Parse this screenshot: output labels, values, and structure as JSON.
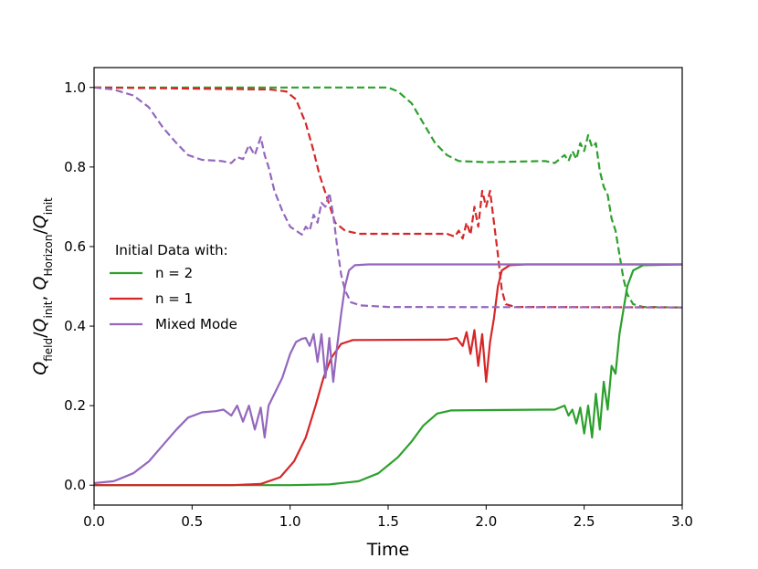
{
  "chart_data": {
    "type": "line",
    "xlabel": "Time",
    "ylabel_parts": {
      "q1": "Q",
      "s1": "field",
      "slash1": "/",
      "q2": "Q",
      "s2": "init",
      "comma": ",",
      "q3": "Q",
      "s3": "Horizon",
      "slash2": "/",
      "q4": "Q",
      "s4": "init"
    },
    "xlim": [
      0.0,
      3.0
    ],
    "ylim": [
      -0.05,
      1.05
    ],
    "xticks": [
      "0.0",
      "0.5",
      "1.0",
      "1.5",
      "2.0",
      "2.5",
      "3.0"
    ],
    "yticks": [
      "0.0",
      "0.2",
      "0.4",
      "0.6",
      "0.8",
      "1.0"
    ],
    "legend": {
      "title": "Initial Data with:",
      "placement": "center-left",
      "entries": [
        {
          "label": "n = 2",
          "color": "#2ca02c"
        },
        {
          "label": "n = 1",
          "color": "#d62728"
        },
        {
          "label": "Mixed Mode",
          "color": "#9467bd"
        }
      ]
    },
    "series": [
      {
        "name": "n = 2 field (solid)",
        "color": "#2ca02c",
        "style": "solid",
        "points": [
          [
            0,
            0
          ],
          [
            1.0,
            0.0
          ],
          [
            1.2,
            0.002
          ],
          [
            1.35,
            0.01
          ],
          [
            1.45,
            0.03
          ],
          [
            1.55,
            0.07
          ],
          [
            1.62,
            0.11
          ],
          [
            1.68,
            0.15
          ],
          [
            1.75,
            0.18
          ],
          [
            1.82,
            0.188
          ],
          [
            2.3,
            0.19
          ],
          [
            2.35,
            0.19
          ],
          [
            2.4,
            0.2
          ],
          [
            2.42,
            0.175
          ],
          [
            2.44,
            0.19
          ],
          [
            2.46,
            0.155
          ],
          [
            2.48,
            0.195
          ],
          [
            2.5,
            0.13
          ],
          [
            2.52,
            0.2
          ],
          [
            2.54,
            0.12
          ],
          [
            2.56,
            0.23
          ],
          [
            2.58,
            0.14
          ],
          [
            2.6,
            0.26
          ],
          [
            2.62,
            0.19
          ],
          [
            2.64,
            0.3
          ],
          [
            2.66,
            0.28
          ],
          [
            2.68,
            0.38
          ],
          [
            2.7,
            0.44
          ],
          [
            2.72,
            0.5
          ],
          [
            2.75,
            0.54
          ],
          [
            2.8,
            0.553
          ],
          [
            3.0,
            0.555
          ]
        ]
      },
      {
        "name": "n = 2 horizon (dashed)",
        "color": "#2ca02c",
        "style": "dashed",
        "points": [
          [
            0,
            1.0
          ],
          [
            1.5,
            1.0
          ],
          [
            1.55,
            0.99
          ],
          [
            1.62,
            0.96
          ],
          [
            1.68,
            0.91
          ],
          [
            1.74,
            0.86
          ],
          [
            1.8,
            0.83
          ],
          [
            1.86,
            0.815
          ],
          [
            2.0,
            0.812
          ],
          [
            2.3,
            0.815
          ],
          [
            2.35,
            0.81
          ],
          [
            2.4,
            0.83
          ],
          [
            2.42,
            0.815
          ],
          [
            2.44,
            0.84
          ],
          [
            2.46,
            0.82
          ],
          [
            2.48,
            0.86
          ],
          [
            2.5,
            0.84
          ],
          [
            2.52,
            0.88
          ],
          [
            2.54,
            0.85
          ],
          [
            2.56,
            0.86
          ],
          [
            2.58,
            0.79
          ],
          [
            2.6,
            0.75
          ],
          [
            2.62,
            0.73
          ],
          [
            2.64,
            0.67
          ],
          [
            2.66,
            0.64
          ],
          [
            2.68,
            0.58
          ],
          [
            2.7,
            0.52
          ],
          [
            2.72,
            0.48
          ],
          [
            2.75,
            0.455
          ],
          [
            2.8,
            0.448
          ],
          [
            3.0,
            0.447
          ]
        ]
      },
      {
        "name": "n = 1 field (solid)",
        "color": "#d62728",
        "style": "solid",
        "points": [
          [
            0,
            0
          ],
          [
            0.7,
            0.0
          ],
          [
            0.85,
            0.003
          ],
          [
            0.95,
            0.02
          ],
          [
            1.02,
            0.06
          ],
          [
            1.08,
            0.12
          ],
          [
            1.13,
            0.2
          ],
          [
            1.17,
            0.27
          ],
          [
            1.21,
            0.32
          ],
          [
            1.26,
            0.355
          ],
          [
            1.32,
            0.365
          ],
          [
            1.8,
            0.366
          ],
          [
            1.85,
            0.37
          ],
          [
            1.88,
            0.35
          ],
          [
            1.9,
            0.385
          ],
          [
            1.92,
            0.33
          ],
          [
            1.94,
            0.39
          ],
          [
            1.96,
            0.3
          ],
          [
            1.98,
            0.38
          ],
          [
            2.0,
            0.26
          ],
          [
            2.02,
            0.36
          ],
          [
            2.04,
            0.42
          ],
          [
            2.06,
            0.5
          ],
          [
            2.08,
            0.54
          ],
          [
            2.12,
            0.553
          ],
          [
            2.2,
            0.555
          ],
          [
            3.0,
            0.555
          ]
        ]
      },
      {
        "name": "n = 1 horizon (dashed)",
        "color": "#d62728",
        "style": "dashed",
        "points": [
          [
            0,
            1.0
          ],
          [
            0.9,
            0.995
          ],
          [
            0.98,
            0.99
          ],
          [
            1.03,
            0.97
          ],
          [
            1.08,
            0.91
          ],
          [
            1.12,
            0.84
          ],
          [
            1.15,
            0.78
          ],
          [
            1.19,
            0.72
          ],
          [
            1.23,
            0.66
          ],
          [
            1.28,
            0.64
          ],
          [
            1.35,
            0.632
          ],
          [
            1.8,
            0.632
          ],
          [
            1.84,
            0.625
          ],
          [
            1.86,
            0.64
          ],
          [
            1.88,
            0.62
          ],
          [
            1.9,
            0.66
          ],
          [
            1.92,
            0.63
          ],
          [
            1.94,
            0.7
          ],
          [
            1.96,
            0.65
          ],
          [
            1.98,
            0.74
          ],
          [
            2.0,
            0.7
          ],
          [
            2.02,
            0.74
          ],
          [
            2.04,
            0.66
          ],
          [
            2.06,
            0.58
          ],
          [
            2.08,
            0.49
          ],
          [
            2.1,
            0.455
          ],
          [
            2.15,
            0.448
          ],
          [
            3.0,
            0.447
          ]
        ]
      },
      {
        "name": "Mixed Mode field (solid)",
        "color": "#9467bd",
        "style": "solid",
        "points": [
          [
            0,
            0.005
          ],
          [
            0.1,
            0.01
          ],
          [
            0.2,
            0.03
          ],
          [
            0.28,
            0.06
          ],
          [
            0.35,
            0.1
          ],
          [
            0.42,
            0.14
          ],
          [
            0.48,
            0.17
          ],
          [
            0.55,
            0.183
          ],
          [
            0.62,
            0.186
          ],
          [
            0.66,
            0.19
          ],
          [
            0.7,
            0.175
          ],
          [
            0.73,
            0.2
          ],
          [
            0.76,
            0.16
          ],
          [
            0.79,
            0.2
          ],
          [
            0.82,
            0.14
          ],
          [
            0.85,
            0.195
          ],
          [
            0.87,
            0.12
          ],
          [
            0.89,
            0.2
          ],
          [
            0.92,
            0.23
          ],
          [
            0.96,
            0.27
          ],
          [
            1.0,
            0.33
          ],
          [
            1.03,
            0.36
          ],
          [
            1.06,
            0.368
          ],
          [
            1.08,
            0.37
          ],
          [
            1.1,
            0.35
          ],
          [
            1.12,
            0.38
          ],
          [
            1.14,
            0.31
          ],
          [
            1.16,
            0.38
          ],
          [
            1.18,
            0.27
          ],
          [
            1.2,
            0.37
          ],
          [
            1.22,
            0.26
          ],
          [
            1.24,
            0.35
          ],
          [
            1.26,
            0.43
          ],
          [
            1.28,
            0.5
          ],
          [
            1.3,
            0.54
          ],
          [
            1.33,
            0.553
          ],
          [
            1.4,
            0.555
          ],
          [
            3.0,
            0.555
          ]
        ]
      },
      {
        "name": "Mixed Mode horizon (dashed)",
        "color": "#9467bd",
        "style": "dashed",
        "points": [
          [
            0,
            1.0
          ],
          [
            0.1,
            0.995
          ],
          [
            0.2,
            0.98
          ],
          [
            0.28,
            0.95
          ],
          [
            0.35,
            0.9
          ],
          [
            0.42,
            0.86
          ],
          [
            0.48,
            0.83
          ],
          [
            0.55,
            0.818
          ],
          [
            0.65,
            0.815
          ],
          [
            0.7,
            0.81
          ],
          [
            0.73,
            0.825
          ],
          [
            0.76,
            0.82
          ],
          [
            0.79,
            0.855
          ],
          [
            0.82,
            0.83
          ],
          [
            0.85,
            0.875
          ],
          [
            0.87,
            0.83
          ],
          [
            0.89,
            0.8
          ],
          [
            0.92,
            0.74
          ],
          [
            0.96,
            0.69
          ],
          [
            1.0,
            0.65
          ],
          [
            1.03,
            0.64
          ],
          [
            1.06,
            0.63
          ],
          [
            1.08,
            0.65
          ],
          [
            1.1,
            0.64
          ],
          [
            1.12,
            0.68
          ],
          [
            1.14,
            0.66
          ],
          [
            1.16,
            0.71
          ],
          [
            1.18,
            0.7
          ],
          [
            1.2,
            0.735
          ],
          [
            1.22,
            0.68
          ],
          [
            1.24,
            0.6
          ],
          [
            1.26,
            0.53
          ],
          [
            1.28,
            0.49
          ],
          [
            1.31,
            0.46
          ],
          [
            1.36,
            0.452
          ],
          [
            1.5,
            0.448
          ],
          [
            3.0,
            0.447
          ]
        ]
      }
    ]
  }
}
